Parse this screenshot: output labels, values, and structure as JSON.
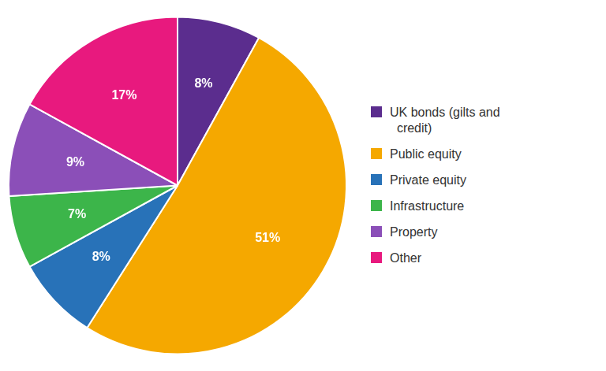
{
  "chart_data": {
    "type": "pie",
    "categories": [
      "UK bonds (gilts and\n  credit)",
      "Public equity",
      "Private equity",
      "Infrastructure",
      "Property",
      "Other"
    ],
    "values": [
      8,
      51,
      8,
      7,
      9,
      17
    ],
    "value_labels": [
      "8%",
      "51%",
      "8%",
      "7%",
      "9%",
      "17%"
    ],
    "colors": [
      "#5b2d8e",
      "#f5a800",
      "#2872b8",
      "#3cb54a",
      "#8b4fb8",
      "#e8197e"
    ],
    "data_labels": true,
    "legend": "right"
  }
}
